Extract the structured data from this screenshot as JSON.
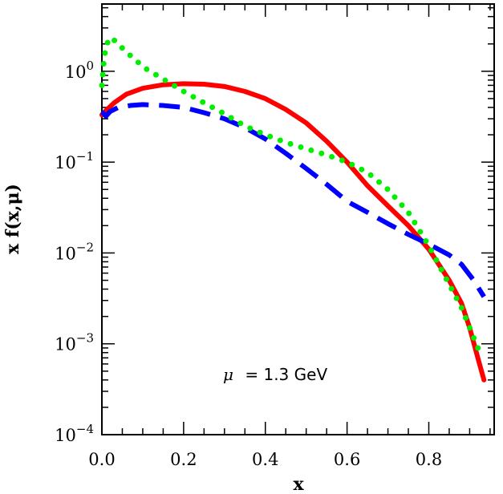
{
  "chart_data": {
    "type": "line",
    "xlabel": "x",
    "ylabel": "x f(x,μ)",
    "xlim": [
      0.0,
      0.96
    ],
    "ylim": [
      0.0001,
      5.5
    ],
    "yscale": "log",
    "grid": false,
    "x_ticks": [
      "0.0",
      "0.2",
      "0.4",
      "0.6",
      "0.8"
    ],
    "y_ticks": [
      {
        "base": "10",
        "exp": "−4"
      },
      {
        "base": "10",
        "exp": "−3"
      },
      {
        "base": "10",
        "exp": "−2"
      },
      {
        "base": "10",
        "exp": "−1"
      },
      {
        "base": "10",
        "exp": "0"
      }
    ],
    "annotation": {
      "mu": "μ",
      "rest": "= 1.3 GeV"
    },
    "series": [
      {
        "color": "#ff0000",
        "style": "solid",
        "points": [
          [
            0.0,
            0.33
          ],
          [
            0.01,
            0.37
          ],
          [
            0.03,
            0.45
          ],
          [
            0.06,
            0.56
          ],
          [
            0.1,
            0.65
          ],
          [
            0.15,
            0.71
          ],
          [
            0.2,
            0.73
          ],
          [
            0.25,
            0.72
          ],
          [
            0.3,
            0.68
          ],
          [
            0.35,
            0.6
          ],
          [
            0.4,
            0.5
          ],
          [
            0.45,
            0.38
          ],
          [
            0.5,
            0.27
          ],
          [
            0.55,
            0.17
          ],
          [
            0.6,
            0.1
          ],
          [
            0.65,
            0.055
          ],
          [
            0.7,
            0.033
          ],
          [
            0.75,
            0.02
          ],
          [
            0.8,
            0.011
          ],
          [
            0.85,
            0.005
          ],
          [
            0.88,
            0.0028
          ],
          [
            0.9,
            0.0015
          ],
          [
            0.92,
            0.0007
          ],
          [
            0.935,
            0.0004
          ]
        ]
      },
      {
        "color": "#0000ff",
        "style": "dashed",
        "points": [
          [
            0.0,
            0.36
          ],
          [
            0.01,
            0.32
          ],
          [
            0.02,
            0.36
          ],
          [
            0.04,
            0.4
          ],
          [
            0.07,
            0.42
          ],
          [
            0.1,
            0.43
          ],
          [
            0.15,
            0.42
          ],
          [
            0.2,
            0.4
          ],
          [
            0.25,
            0.35
          ],
          [
            0.3,
            0.3
          ],
          [
            0.35,
            0.24
          ],
          [
            0.4,
            0.18
          ],
          [
            0.45,
            0.125
          ],
          [
            0.5,
            0.085
          ],
          [
            0.55,
            0.057
          ],
          [
            0.6,
            0.037
          ],
          [
            0.65,
            0.028
          ],
          [
            0.7,
            0.021
          ],
          [
            0.75,
            0.016
          ],
          [
            0.8,
            0.0125
          ],
          [
            0.85,
            0.0095
          ],
          [
            0.88,
            0.0075
          ],
          [
            0.91,
            0.005
          ],
          [
            0.935,
            0.0033
          ]
        ]
      },
      {
        "color": "#00ee00",
        "style": "dotted",
        "points": [
          [
            0.0,
            0.7
          ],
          [
            0.005,
            1.3
          ],
          [
            0.01,
            1.9
          ],
          [
            0.02,
            2.35
          ],
          [
            0.03,
            2.2
          ],
          [
            0.05,
            1.8
          ],
          [
            0.08,
            1.35
          ],
          [
            0.11,
            1.05
          ],
          [
            0.15,
            0.82
          ],
          [
            0.2,
            0.6
          ],
          [
            0.25,
            0.45
          ],
          [
            0.3,
            0.34
          ],
          [
            0.35,
            0.25
          ],
          [
            0.4,
            0.2
          ],
          [
            0.45,
            0.165
          ],
          [
            0.5,
            0.14
          ],
          [
            0.55,
            0.12
          ],
          [
            0.6,
            0.1
          ],
          [
            0.65,
            0.077
          ],
          [
            0.7,
            0.05
          ],
          [
            0.75,
            0.028
          ],
          [
            0.8,
            0.012
          ],
          [
            0.85,
            0.0045
          ],
          [
            0.88,
            0.0025
          ],
          [
            0.9,
            0.0015
          ],
          [
            0.93,
            0.0007
          ]
        ]
      }
    ]
  }
}
